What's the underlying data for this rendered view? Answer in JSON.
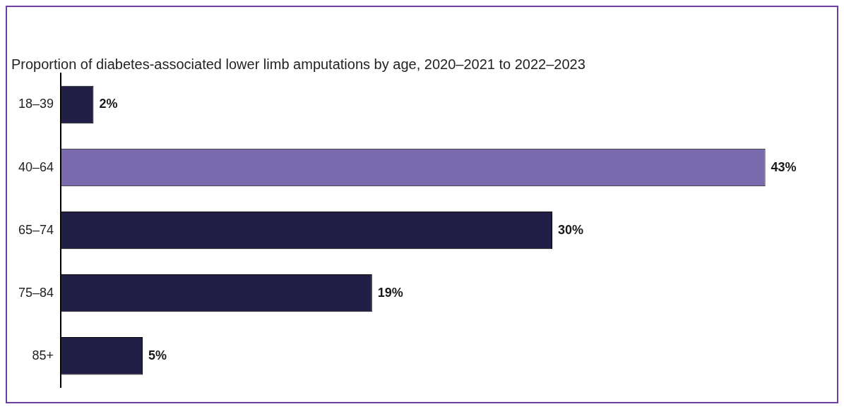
{
  "chart_data": {
    "type": "bar",
    "orientation": "horizontal",
    "title": "Proportion of diabetes-associated lower limb amputations by age, 2020–2021 to 2022–2023",
    "categories": [
      "18–39",
      "40–64",
      "65–74",
      "75–84",
      "85+"
    ],
    "values": [
      2,
      43,
      30,
      19,
      5
    ],
    "colors": [
      "#221f47",
      "#7a6aae",
      "#221f47",
      "#221f47",
      "#221f47"
    ],
    "value_labels": [
      "2%",
      "43%",
      "30%",
      "19%",
      "5%"
    ],
    "tick_labels": "y",
    "grid": false,
    "legend": false
  }
}
